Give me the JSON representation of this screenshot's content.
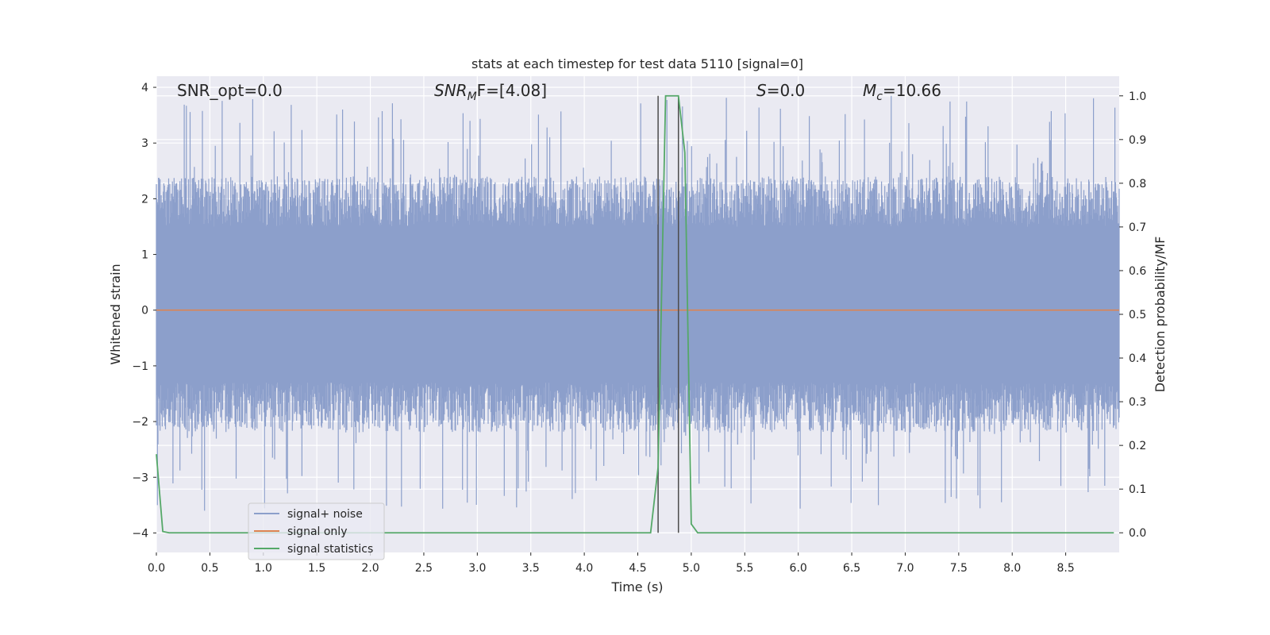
{
  "chart_data": {
    "type": "line",
    "title": "stats at each timestep for test data 5110 [signal=0]",
    "xlabel": "Time (s)",
    "ylabel": "Whitened strain",
    "y2label": "Detection probability/MF",
    "xlim": [
      0,
      9.0
    ],
    "ylim": [
      -4.35,
      4.2
    ],
    "y2lim": [
      -0.045,
      1.045
    ],
    "xticks": [
      0.0,
      0.5,
      1.0,
      1.5,
      2.0,
      2.5,
      3.0,
      3.5,
      4.0,
      4.5,
      5.0,
      5.5,
      6.0,
      6.5,
      7.0,
      7.5,
      8.0,
      8.5
    ],
    "xtick_labels": [
      "0.0",
      "0.5",
      "1.0",
      "1.5",
      "2.0",
      "2.5",
      "3.0",
      "3.5",
      "4.0",
      "4.5",
      "5.0",
      "5.5",
      "6.0",
      "6.5",
      "7.0",
      "7.5",
      "8.0",
      "8.5"
    ],
    "yticks": [
      4,
      3,
      2,
      1,
      0,
      -1,
      -2,
      -3,
      -4
    ],
    "ytick_labels": [
      "4",
      "3",
      "2",
      "1",
      "0",
      "−1",
      "−2",
      "−3",
      "−4"
    ],
    "y2ticks": [
      1.0,
      0.9,
      0.8,
      0.7,
      0.6,
      0.5,
      0.4,
      0.3,
      0.2,
      0.1,
      0.0
    ],
    "y2tick_labels": [
      "1.0",
      "0.9",
      "0.8",
      "0.7",
      "0.6",
      "0.5",
      "0.4",
      "0.3",
      "0.2",
      "0.1",
      "0.0"
    ],
    "grid": true,
    "legend_position": "bottom-left",
    "annotations": {
      "snr_opt": "SNR_opt=0.0",
      "snr_mf_main": "SNR",
      "snr_mf_sub": "M",
      "snr_mf_tail": "F=[4.08]",
      "s_main": "S",
      "s_tail": "=0.0",
      "mc_main": "M",
      "mc_sub": "c",
      "mc_tail": "=10.66"
    },
    "noise_envelope": {
      "typical_range": [
        -1.9,
        2.1
      ],
      "peak_range": [
        -3.6,
        3.85
      ]
    },
    "vertical_markers": [
      4.69,
      4.88
    ],
    "series": [
      {
        "name": "signal+ noise",
        "color": "#8c9fcb",
        "axis": "left",
        "note": "noise"
      },
      {
        "name": "signal only",
        "color": "#dd8452",
        "axis": "left",
        "x": [
          0,
          9.0
        ],
        "y": [
          0,
          0
        ]
      },
      {
        "name": "signal statistics",
        "color": "#55a868",
        "axis": "right",
        "x": [
          0.0,
          0.06,
          0.12,
          4.62,
          4.69,
          4.76,
          4.82,
          4.88,
          4.94,
          5.0,
          5.06,
          8.95
        ],
        "y": [
          0.18,
          0.003,
          0.0,
          0.0,
          0.15,
          1.0,
          1.0,
          1.0,
          0.87,
          0.02,
          0.0,
          0.0
        ]
      }
    ]
  }
}
